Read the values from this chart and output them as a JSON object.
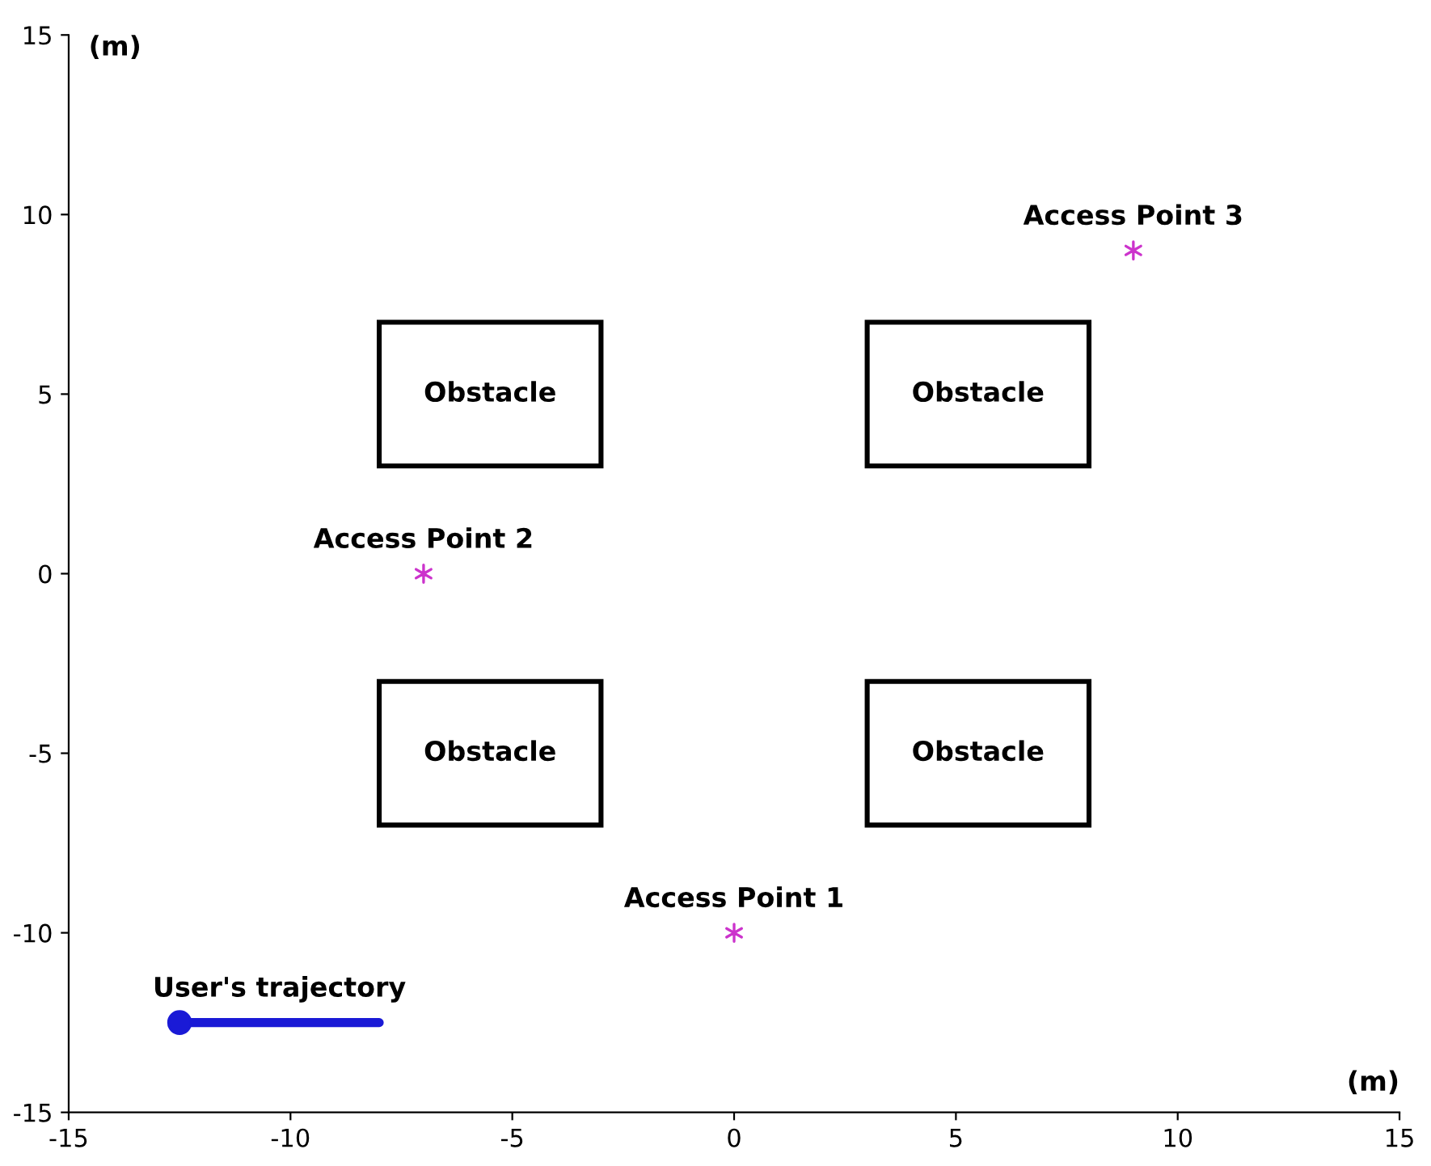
{
  "chart_data": {
    "type": "scatter",
    "xlabel": "(m)",
    "ylabel": "(m)",
    "xlim": [
      -15,
      15
    ],
    "ylim": [
      -15,
      15
    ],
    "xticks": [
      -15,
      -10,
      -5,
      0,
      5,
      10,
      15
    ],
    "yticks": [
      -15,
      -10,
      -5,
      0,
      5,
      10,
      15
    ],
    "grid": false,
    "legend": false,
    "series": [
      {
        "type": "bar",
        "color": "#ffffff",
        "x": [
          -5.5,
          5.5
        ],
        "base": [
          3,
          3
        ],
        "values": [
          4,
          4
        ]
      },
      {
        "type": "bar",
        "color": "#ffffff",
        "x": [
          -5.5,
          5.5
        ],
        "base": [
          -7,
          -7
        ],
        "values": [
          4,
          4
        ]
      },
      {
        "color": "#cc33cc",
        "x": [
          0,
          -7,
          9
        ],
        "values": [
          -10,
          0,
          9
        ],
        "marker": "cross"
      },
      {
        "type": "line",
        "color": "#1a1ad6",
        "x": [
          -12.5,
          -8
        ],
        "values": [
          -12.5,
          -12.5
        ],
        "marker": "circle"
      }
    ],
    "annotations": [
      "Obstacle",
      "Obstacle",
      "Obstacle",
      "Obstacle",
      {
        "text": "Access Point 1",
        "x": 0,
        "y": -10
      },
      {
        "text": "Access Point 2",
        "x": -7,
        "y": 0
      },
      {
        "text": "Access Point 3",
        "x": 9,
        "y": 9
      },
      {
        "text": "User's trajectory",
        "x": -10.25,
        "y": -12.5
      }
    ]
  }
}
